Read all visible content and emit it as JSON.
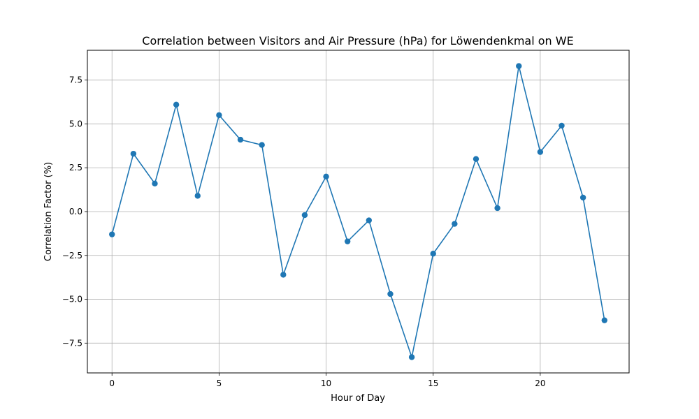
{
  "chart_data": {
    "type": "line",
    "title": "Correlation between Visitors and Air Pressure (hPa) for Löwendenkmal on WE",
    "xlabel": "Hour of Day",
    "ylabel": "Correlation Factor (%)",
    "xlim": [
      -1.15,
      24.15
    ],
    "ylim": [
      -9.2,
      9.2
    ],
    "x_ticks": [
      0,
      5,
      10,
      15,
      20
    ],
    "x_tick_labels": [
      "0",
      "5",
      "10",
      "15",
      "20"
    ],
    "y_ticks": [
      -7.5,
      -5.0,
      -2.5,
      0.0,
      2.5,
      5.0,
      7.5
    ],
    "y_tick_labels": [
      "−7.5",
      "−5.0",
      "−2.5",
      "0.0",
      "2.5",
      "5.0",
      "7.5"
    ],
    "grid": true,
    "marker": "circle",
    "series": [
      {
        "color": "#1f77b4",
        "x": [
          0,
          1,
          2,
          3,
          4,
          5,
          6,
          7,
          8,
          9,
          10,
          11,
          12,
          13,
          14,
          15,
          16,
          17,
          18,
          19,
          20,
          21,
          22,
          23
        ],
        "y": [
          -1.3,
          3.3,
          1.6,
          6.1,
          0.9,
          5.5,
          4.1,
          3.8,
          -3.6,
          -0.2,
          2.0,
          -1.7,
          -0.5,
          -4.7,
          -8.3,
          -2.4,
          -0.7,
          3.0,
          0.2,
          8.3,
          3.4,
          4.9,
          0.8,
          -6.2
        ]
      }
    ]
  }
}
